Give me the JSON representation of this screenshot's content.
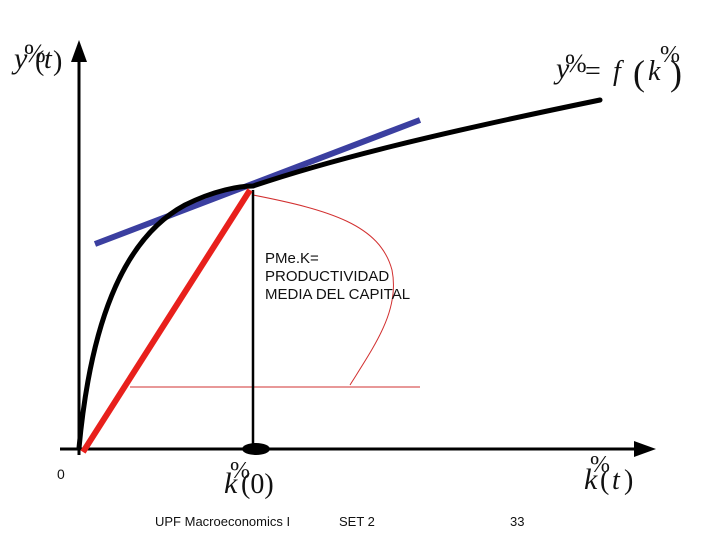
{
  "labels": {
    "y_axis": "y%(t)",
    "function": "y% = f (k%)",
    "k0": "k%(0)",
    "x_axis": "k%(t)",
    "origin": "0",
    "annotation": "PMe.K=\nPRODUCTIVIDAD\nMEDIA DEL CAPITAL"
  },
  "footer": {
    "left": "UPF Macroeconomics I",
    "center": "SET 2",
    "page": "33"
  },
  "colors": {
    "curve": "#000000",
    "tangent": "#3b3fa0",
    "ray": "#e8201c",
    "annotation_line": "#d23030"
  }
}
